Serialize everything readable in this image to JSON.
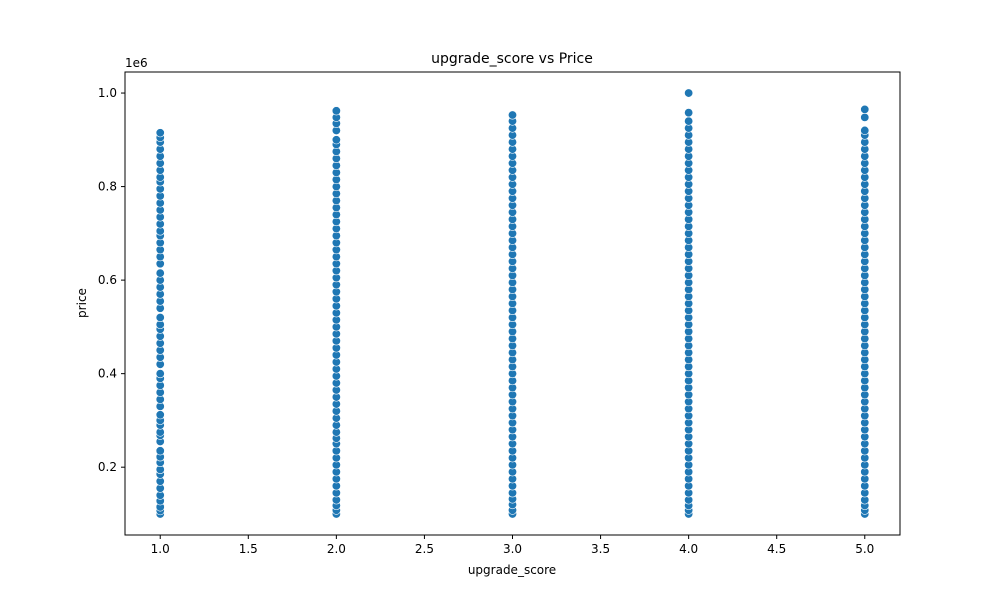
{
  "chart_data": {
    "type": "scatter",
    "title": "upgrade_score vs Price",
    "xlabel": "upgrade_score",
    "ylabel": "price",
    "y_offset_label": "1e6",
    "xlim": [
      0.8,
      5.2
    ],
    "ylim": [
      0.055,
      1.045
    ],
    "x_ticks": [
      1.0,
      1.5,
      2.0,
      2.5,
      3.0,
      3.5,
      4.0,
      4.5,
      5.0
    ],
    "x_tick_labels": [
      "1.0",
      "1.5",
      "2.0",
      "2.5",
      "3.0",
      "3.5",
      "4.0",
      "4.5",
      "5.0"
    ],
    "y_ticks": [
      0.2,
      0.4,
      0.6,
      0.8,
      1.0
    ],
    "y_tick_labels": [
      "0.2",
      "0.4",
      "0.6",
      "0.8",
      "1.0"
    ],
    "grid": false,
    "marker_color": "#1f77b4",
    "marker_edge_color": "#ffffff",
    "series": [
      {
        "x_value": 1.0,
        "y_values": [
          0.1,
          0.107,
          0.115,
          0.128,
          0.14,
          0.155,
          0.17,
          0.185,
          0.195,
          0.21,
          0.222,
          0.235,
          0.255,
          0.268,
          0.275,
          0.29,
          0.3,
          0.312,
          0.33,
          0.345,
          0.36,
          0.375,
          0.39,
          0.4,
          0.42,
          0.435,
          0.45,
          0.465,
          0.48,
          0.495,
          0.505,
          0.52,
          0.54,
          0.555,
          0.57,
          0.585,
          0.6,
          0.615,
          0.635,
          0.65,
          0.665,
          0.68,
          0.695,
          0.705,
          0.72,
          0.735,
          0.75,
          0.765,
          0.78,
          0.795,
          0.81,
          0.82,
          0.835,
          0.85,
          0.865,
          0.88,
          0.895,
          0.905,
          0.915
        ]
      },
      {
        "x_value": 2.0,
        "y_values": [
          0.1,
          0.108,
          0.118,
          0.13,
          0.145,
          0.16,
          0.175,
          0.19,
          0.205,
          0.22,
          0.235,
          0.25,
          0.262,
          0.275,
          0.29,
          0.305,
          0.32,
          0.335,
          0.35,
          0.365,
          0.38,
          0.395,
          0.41,
          0.425,
          0.44,
          0.455,
          0.47,
          0.485,
          0.5,
          0.515,
          0.53,
          0.545,
          0.56,
          0.575,
          0.59,
          0.605,
          0.62,
          0.635,
          0.65,
          0.665,
          0.68,
          0.695,
          0.71,
          0.725,
          0.74,
          0.755,
          0.77,
          0.785,
          0.8,
          0.815,
          0.83,
          0.845,
          0.86,
          0.875,
          0.89,
          0.9,
          0.92,
          0.935,
          0.948,
          0.962
        ]
      },
      {
        "x_value": 3.0,
        "y_values": [
          0.1,
          0.108,
          0.12,
          0.132,
          0.145,
          0.16,
          0.175,
          0.19,
          0.205,
          0.22,
          0.235,
          0.25,
          0.265,
          0.28,
          0.295,
          0.31,
          0.325,
          0.34,
          0.355,
          0.37,
          0.385,
          0.4,
          0.415,
          0.43,
          0.445,
          0.46,
          0.475,
          0.49,
          0.505,
          0.52,
          0.535,
          0.55,
          0.565,
          0.58,
          0.595,
          0.61,
          0.625,
          0.64,
          0.655,
          0.67,
          0.685,
          0.7,
          0.715,
          0.73,
          0.745,
          0.76,
          0.775,
          0.79,
          0.805,
          0.82,
          0.835,
          0.85,
          0.865,
          0.88,
          0.895,
          0.91,
          0.925,
          0.94,
          0.953
        ]
      },
      {
        "x_value": 4.0,
        "y_values": [
          0.1,
          0.108,
          0.118,
          0.13,
          0.145,
          0.16,
          0.175,
          0.19,
          0.205,
          0.22,
          0.235,
          0.25,
          0.265,
          0.28,
          0.295,
          0.31,
          0.325,
          0.34,
          0.355,
          0.37,
          0.385,
          0.4,
          0.415,
          0.43,
          0.445,
          0.46,
          0.475,
          0.49,
          0.505,
          0.52,
          0.535,
          0.55,
          0.565,
          0.58,
          0.595,
          0.61,
          0.625,
          0.64,
          0.655,
          0.67,
          0.685,
          0.7,
          0.715,
          0.73,
          0.745,
          0.76,
          0.775,
          0.79,
          0.805,
          0.82,
          0.835,
          0.85,
          0.865,
          0.88,
          0.895,
          0.91,
          0.925,
          0.94,
          0.958,
          1.0
        ]
      },
      {
        "x_value": 5.0,
        "y_values": [
          0.1,
          0.108,
          0.118,
          0.13,
          0.145,
          0.16,
          0.175,
          0.19,
          0.205,
          0.22,
          0.235,
          0.25,
          0.265,
          0.28,
          0.295,
          0.31,
          0.325,
          0.34,
          0.355,
          0.37,
          0.385,
          0.4,
          0.415,
          0.43,
          0.445,
          0.46,
          0.475,
          0.49,
          0.505,
          0.52,
          0.535,
          0.55,
          0.565,
          0.58,
          0.595,
          0.61,
          0.625,
          0.64,
          0.655,
          0.67,
          0.685,
          0.7,
          0.715,
          0.73,
          0.745,
          0.76,
          0.775,
          0.79,
          0.805,
          0.82,
          0.835,
          0.85,
          0.865,
          0.88,
          0.895,
          0.91,
          0.92,
          0.948,
          0.965
        ]
      }
    ]
  }
}
